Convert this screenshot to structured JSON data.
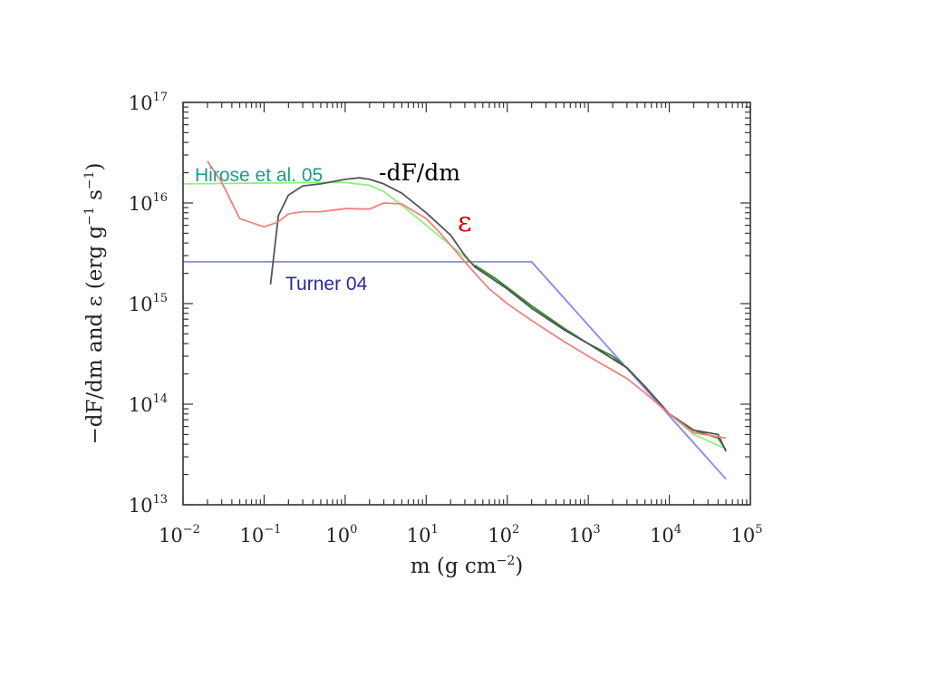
{
  "chart_data": {
    "type": "line",
    "xscale": "log",
    "yscale": "log",
    "xlim": [
      0.01,
      100000
    ],
    "ylim": [
      10000000000000.0,
      1e+17
    ],
    "grid": false,
    "xlabel_parts": [
      "m (g cm",
      "−2",
      ")"
    ],
    "ylabel_parts": [
      "−dF/dm and ε (erg g",
      "−1",
      " s",
      "−1",
      ")"
    ],
    "xticks": [
      {
        "value": 0.01,
        "base": "10",
        "exp": "−2"
      },
      {
        "value": 0.1,
        "base": "10",
        "exp": "−1"
      },
      {
        "value": 1,
        "base": "10",
        "exp": "0"
      },
      {
        "value": 10,
        "base": "10",
        "exp": "1"
      },
      {
        "value": 100,
        "base": "10",
        "exp": "2"
      },
      {
        "value": 1000,
        "base": "10",
        "exp": "3"
      },
      {
        "value": 10000,
        "base": "10",
        "exp": "4"
      },
      {
        "value": 100000,
        "base": "10",
        "exp": "5"
      }
    ],
    "yticks": [
      {
        "value": 10000000000000.0,
        "base": "10",
        "exp": "13"
      },
      {
        "value": 100000000000000.0,
        "base": "10",
        "exp": "14"
      },
      {
        "value": 1000000000000000.0,
        "base": "10",
        "exp": "15"
      },
      {
        "value": 1e+16,
        "base": "10",
        "exp": "16"
      },
      {
        "value": 1e+17,
        "base": "10",
        "exp": "17"
      }
    ],
    "series": [
      {
        "color": "#8888ee",
        "points": [
          [
            0.01,
            2600000000000000.0
          ],
          [
            200,
            2600000000000000.0
          ],
          [
            50000,
            18000000000000.0
          ]
        ]
      },
      {
        "color": "#90ee80",
        "points": [
          [
            0.01,
            1.55e+16
          ],
          [
            0.5,
            1.6e+16
          ],
          [
            1,
            1.6e+16
          ],
          [
            2,
            1.5e+16
          ],
          [
            3,
            1.3e+16
          ],
          [
            5,
            9500000000000000.0
          ],
          [
            10,
            6000000000000000.0
          ],
          [
            20,
            3800000000000000.0
          ],
          [
            40,
            2400000000000000.0
          ],
          [
            100,
            1400000000000000.0
          ],
          [
            200,
            900000000000000.0
          ],
          [
            500,
            550000000000000.0
          ],
          [
            1000,
            400000000000000.0
          ],
          [
            3000,
            230000000000000.0
          ],
          [
            5000,
            150000000000000.0
          ],
          [
            10000,
            80000000000000.0
          ],
          [
            20000,
            50000000000000.0
          ],
          [
            50000,
            36000000000000.0
          ]
        ]
      },
      {
        "color": "#2e8a2e",
        "points": [
          [
            40,
            2400000000000000.0
          ],
          [
            70,
            1800000000000000.0
          ],
          [
            100,
            1450000000000000.0
          ],
          [
            200,
            950000000000000.0
          ],
          [
            500,
            570000000000000.0
          ],
          [
            1000,
            400000000000000.0
          ],
          [
            2000,
            300000000000000.0
          ],
          [
            3000,
            230000000000000.0
          ],
          [
            5000,
            150000000000000.0
          ],
          [
            10000,
            80000000000000.0
          ],
          [
            20000,
            55000000000000.0
          ],
          [
            40000,
            46000000000000.0
          ],
          [
            50000,
            35000000000000.0
          ]
        ]
      },
      {
        "color": "#555555",
        "points": [
          [
            0.12,
            1550000000000000.0
          ],
          [
            0.15,
            7500000000000000.0
          ],
          [
            0.2,
            1.2e+16
          ],
          [
            0.3,
            1.48e+16
          ],
          [
            0.5,
            1.55e+16
          ],
          [
            1,
            1.72e+16
          ],
          [
            1.5,
            1.78e+16
          ],
          [
            2,
            1.72e+16
          ],
          [
            3,
            1.55e+16
          ],
          [
            5,
            1.25e+16
          ],
          [
            10,
            8000000000000000.0
          ],
          [
            20,
            4800000000000000.0
          ],
          [
            30,
            3000000000000000.0
          ],
          [
            40,
            2300000000000000.0
          ],
          [
            100,
            1400000000000000.0
          ],
          [
            200,
            900000000000000.0
          ],
          [
            500,
            550000000000000.0
          ],
          [
            1000,
            400000000000000.0
          ],
          [
            3000,
            230000000000000.0
          ],
          [
            5000,
            150000000000000.0
          ],
          [
            10000,
            80000000000000.0
          ],
          [
            20000,
            55000000000000.0
          ],
          [
            40000,
            50000000000000.0
          ],
          [
            50000,
            34000000000000.0
          ]
        ]
      },
      {
        "color": "#f08080",
        "points": [
          [
            0.02,
            2.6e+16
          ],
          [
            0.03,
            1.6e+16
          ],
          [
            0.05,
            7000000000000000.0
          ],
          [
            0.1,
            5800000000000000.0
          ],
          [
            0.15,
            6500000000000000.0
          ],
          [
            0.2,
            7800000000000000.0
          ],
          [
            0.3,
            8200000000000000.0
          ],
          [
            0.5,
            8200000000000000.0
          ],
          [
            1,
            8800000000000000.0
          ],
          [
            2,
            8700000000000000.0
          ],
          [
            3,
            1e+16
          ],
          [
            5,
            9800000000000000.0
          ],
          [
            10,
            7000000000000000.0
          ],
          [
            15,
            5000000000000000.0
          ],
          [
            20,
            3800000000000000.0
          ],
          [
            30,
            2600000000000000.0
          ],
          [
            40,
            2000000000000000.0
          ],
          [
            60,
            1400000000000000.0
          ],
          [
            100,
            1000000000000000.0
          ],
          [
            200,
            680000000000000.0
          ],
          [
            500,
            420000000000000.0
          ],
          [
            1000,
            300000000000000.0
          ],
          [
            3000,
            180000000000000.0
          ],
          [
            5000,
            130000000000000.0
          ],
          [
            10000,
            80000000000000.0
          ],
          [
            20000,
            52000000000000.0
          ],
          [
            50000,
            46000000000000.0
          ]
        ]
      }
    ],
    "annotations": [
      {
        "text": "Hirose et al. 05",
        "color": "#1f9a8a"
      },
      {
        "text": "-dF/dm",
        "color": "#000000"
      },
      {
        "text": "ε",
        "color": "#cc0000"
      },
      {
        "text": "Turner 04",
        "color": "#2a2a9a"
      }
    ]
  }
}
